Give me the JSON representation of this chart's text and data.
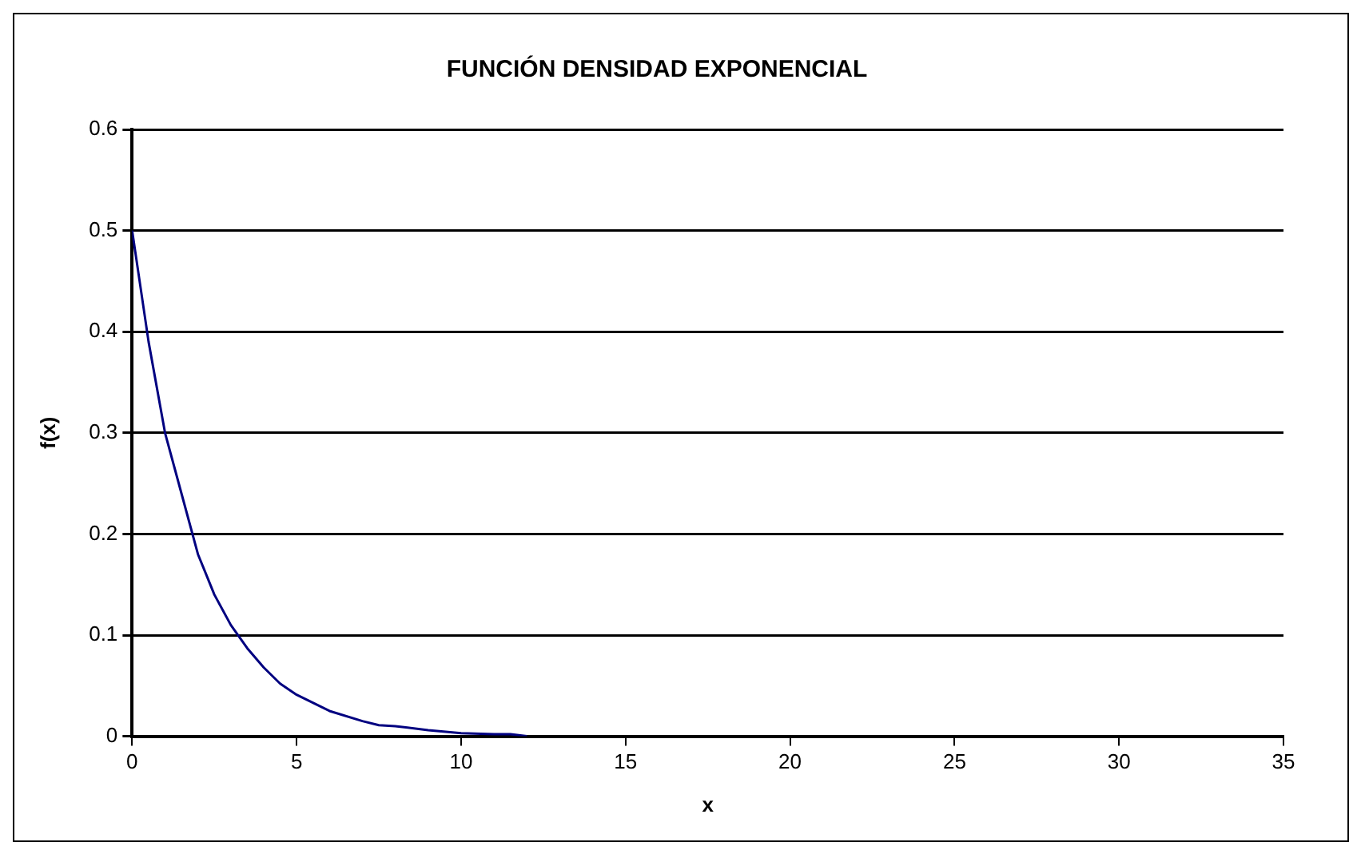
{
  "chart_data": {
    "type": "line",
    "title": "FUNCIÓN DENSIDAD EXPONENCIAL",
    "xlabel": "x",
    "ylabel": "f(x)",
    "x": [
      0,
      0.5,
      1,
      1.5,
      2,
      2.5,
      3,
      3.5,
      4,
      4.5,
      5,
      6,
      7,
      7.5,
      8,
      9,
      10,
      11,
      11.5,
      12
    ],
    "series": [
      {
        "color": "#000080",
        "values": [
          0.5,
          0.39,
          0.3,
          0.24,
          0.18,
          0.14,
          0.11,
          0.087,
          0.068,
          0.052,
          0.041,
          0.025,
          0.015,
          0.011,
          0.01,
          0.006,
          0.003,
          0.002,
          0.002,
          0
        ]
      }
    ],
    "xlim": [
      0,
      35
    ],
    "xticks": [
      0,
      5,
      10,
      15,
      20,
      25,
      30,
      35
    ],
    "ylim": [
      0,
      0.6
    ],
    "yticks": [
      0,
      0.1,
      0.2,
      0.3,
      0.4,
      0.5,
      0.6
    ],
    "grid": "y",
    "legend": false,
    "marker": "none",
    "line_style": "solid"
  }
}
